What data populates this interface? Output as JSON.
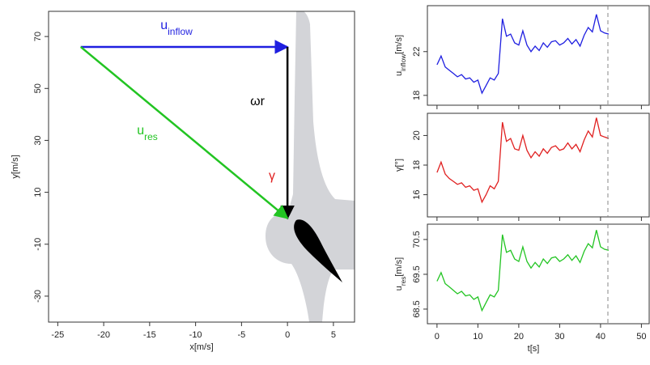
{
  "chart_data": [
    {
      "type": "vector",
      "xlabel": "x[m/s]",
      "ylabel": "y[m/s]",
      "xlim": [
        -26,
        7.3
      ],
      "ylim": [
        -40,
        79.7
      ],
      "xticks": [
        -25,
        -20,
        -15,
        -10,
        -5,
        0,
        5
      ],
      "yticks": [
        -30,
        -10,
        10,
        30,
        50,
        70
      ],
      "arrows": [
        {
          "label": {
            "main": "u",
            "sub": "inflow"
          },
          "color": "#1f1fe0",
          "from": [
            -22.5,
            66
          ],
          "to": [
            0,
            66
          ]
        },
        {
          "label": {
            "main": "ωr"
          },
          "color": "#000000",
          "from": [
            0,
            66
          ],
          "to": [
            0,
            0
          ]
        },
        {
          "label": {
            "main": "u",
            "sub": "res"
          },
          "color": "#22c422",
          "from": [
            -22.5,
            66
          ],
          "to": [
            0,
            0
          ]
        }
      ],
      "annotations": [
        {
          "text": "γ",
          "color": "#e02020"
        }
      ]
    },
    {
      "type": "line",
      "ylabel": {
        "main": "u",
        "sub": "inflow",
        "unit": "[m/s]"
      },
      "color": "#1f1fe0",
      "xlim": [
        -2.35,
        51.9
      ],
      "ylim": [
        17.1,
        26.2
      ],
      "xticks": [
        0,
        10,
        20,
        30,
        40,
        50
      ],
      "yticks": [
        18,
        22
      ],
      "vline": 41.8,
      "x": [
        0,
        1,
        2,
        3,
        4,
        5,
        6,
        7,
        8,
        9,
        10,
        11,
        12,
        13,
        14,
        15,
        16,
        17,
        18,
        19,
        20,
        21,
        22,
        23,
        24,
        25,
        26,
        27,
        28,
        29,
        30,
        31,
        32,
        33,
        34,
        35,
        36,
        37,
        38,
        39,
        40,
        41,
        42
      ],
      "values": [
        20.8,
        21.6,
        20.6,
        20.3,
        20.0,
        19.7,
        19.9,
        19.5,
        19.6,
        19.2,
        19.4,
        18.2,
        18.9,
        19.6,
        19.4,
        20.0,
        25.0,
        23.4,
        23.6,
        22.8,
        22.6,
        23.9,
        22.6,
        22.0,
        22.5,
        22.1,
        22.8,
        22.4,
        22.9,
        23.0,
        22.6,
        22.8,
        23.2,
        22.7,
        23.1,
        22.5,
        23.5,
        24.2,
        23.8,
        25.4,
        23.9,
        23.7,
        23.6
      ]
    },
    {
      "type": "line",
      "ylabel": {
        "main": "γ",
        "unit": "[°]"
      },
      "color": "#e02020",
      "xlim": [
        -2.35,
        51.9
      ],
      "ylim": [
        14.5,
        21.5
      ],
      "xticks": [
        0,
        10,
        20,
        30,
        40,
        50
      ],
      "yticks": [
        16,
        18,
        20
      ],
      "vline": 41.8,
      "x": [
        0,
        1,
        2,
        3,
        4,
        5,
        6,
        7,
        8,
        9,
        10,
        11,
        12,
        13,
        14,
        15,
        16,
        17,
        18,
        19,
        20,
        21,
        22,
        23,
        24,
        25,
        26,
        27,
        28,
        29,
        30,
        31,
        32,
        33,
        34,
        35,
        36,
        37,
        38,
        39,
        40,
        41,
        42
      ],
      "values": [
        17.5,
        18.2,
        17.4,
        17.1,
        16.9,
        16.7,
        16.8,
        16.5,
        16.6,
        16.3,
        16.4,
        15.5,
        16.0,
        16.6,
        16.4,
        16.9,
        20.9,
        19.6,
        19.8,
        19.1,
        19.0,
        20.0,
        19.0,
        18.5,
        18.9,
        18.6,
        19.1,
        18.8,
        19.2,
        19.3,
        19.0,
        19.1,
        19.5,
        19.1,
        19.4,
        18.9,
        19.7,
        20.3,
        19.9,
        21.2,
        20.0,
        19.9,
        19.8
      ]
    },
    {
      "type": "line",
      "ylabel": {
        "main": "u",
        "sub": "res",
        "unit": "[m/s]"
      },
      "xlabel": "t[s]",
      "color": "#22c422",
      "xlim": [
        -2.35,
        51.9
      ],
      "ylim": [
        68.08,
        70.94
      ],
      "xticks": [
        0,
        10,
        20,
        30,
        40,
        50
      ],
      "yticks": [
        68.5,
        69.5,
        70.5
      ],
      "vline": 41.8,
      "x": [
        0,
        1,
        2,
        3,
        4,
        5,
        6,
        7,
        8,
        9,
        10,
        11,
        12,
        13,
        14,
        15,
        16,
        17,
        18,
        19,
        20,
        21,
        22,
        23,
        24,
        25,
        26,
        27,
        28,
        29,
        30,
        31,
        32,
        33,
        34,
        35,
        36,
        37,
        38,
        39,
        40,
        41,
        42
      ],
      "values": [
        69.3,
        69.55,
        69.23,
        69.14,
        69.04,
        68.94,
        69.01,
        68.88,
        68.91,
        68.78,
        68.85,
        68.46,
        68.69,
        68.91,
        68.85,
        69.04,
        70.64,
        70.13,
        70.19,
        69.94,
        69.87,
        70.29,
        69.87,
        69.68,
        69.84,
        69.71,
        69.94,
        69.81,
        69.97,
        70.0,
        69.87,
        69.94,
        70.06,
        69.9,
        70.03,
        69.84,
        70.16,
        70.38,
        70.26,
        70.77,
        70.29,
        70.22,
        70.19
      ]
    }
  ]
}
